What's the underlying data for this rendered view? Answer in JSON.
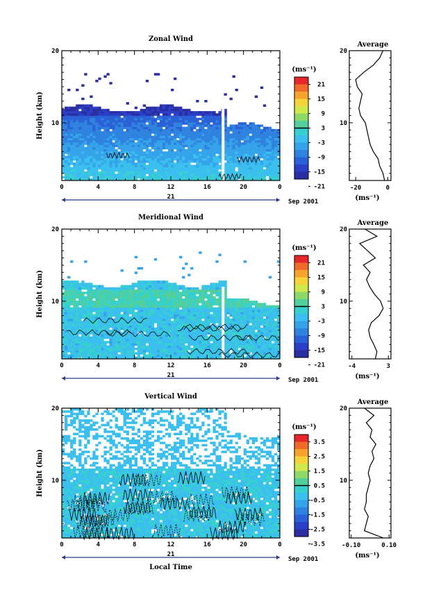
{
  "chart_data": [
    {
      "type": "heatmap",
      "title": "Zonal Wind",
      "ylabel": "Height (km)",
      "xlabel": "",
      "xticks": [
        "0",
        "4",
        "8",
        "12",
        "16",
        "20",
        "0"
      ],
      "yticks": [
        "10",
        "20"
      ],
      "day_label": "21",
      "date_label": "Sep 2001",
      "ylim": [
        2,
        20
      ],
      "xlim": [
        0,
        24
      ],
      "colorbar": {
        "unit": "(ms⁻¹)",
        "labels": [
          "21",
          "15",
          "9",
          "3",
          "-3",
          "-9",
          "-15",
          "-21"
        ],
        "colors": [
          "#e6262a",
          "#f06a2a",
          "#f6a32e",
          "#f4d43a",
          "#cfe84a",
          "#8ed86a",
          "#52cf9a",
          "#36d0cf",
          "#3bbfee",
          "#35a3ea",
          "#2f83df",
          "#2a61d6",
          "#2a3fc8",
          "#2b2ea0"
        ],
        "vmin": -24,
        "vmax": 24
      },
      "average": {
        "title": "Average",
        "xlabel": "(ms⁻¹)",
        "xticks": [
          "-20",
          "0"
        ],
        "xlim": [
          -24,
          2
        ],
        "heights": [
          2,
          3,
          4,
          5,
          6,
          7,
          8,
          9,
          10,
          11,
          12,
          13,
          14,
          15,
          16,
          17,
          18,
          19,
          20
        ],
        "values": [
          -2,
          -3,
          -5,
          -6,
          -9,
          -11,
          -12,
          -13,
          -14,
          -17,
          -18,
          -17,
          -16,
          -19,
          -20,
          -15,
          -9,
          -5,
          -3
        ]
      }
    },
    {
      "type": "heatmap",
      "title": "Meridional Wind",
      "ylabel": "Height (km)",
      "xlabel": "",
      "xticks": [
        "0",
        "4",
        "8",
        "12",
        "16",
        "20",
        "0"
      ],
      "yticks": [
        "10",
        "20"
      ],
      "day_label": "21",
      "date_label": "Sep 2001",
      "ylim": [
        2,
        20
      ],
      "xlim": [
        0,
        24
      ],
      "colorbar": {
        "unit": "(ms⁻¹)",
        "labels": [
          "21",
          "15",
          "9",
          "3",
          "-3",
          "-9",
          "-15",
          "-21"
        ],
        "colors": [
          "#e6262a",
          "#f06a2a",
          "#f6a32e",
          "#f4d43a",
          "#cfe84a",
          "#8ed86a",
          "#52cf9a",
          "#36d0cf",
          "#3bbfee",
          "#35a3ea",
          "#2f83df",
          "#2a61d6",
          "#2a3fc8",
          "#2b2ea0"
        ],
        "vmin": -24,
        "vmax": 24
      },
      "average": {
        "title": "Average",
        "xlabel": "(ms⁻¹)",
        "xticks": [
          "-4",
          "3"
        ],
        "xlim": [
          -4.5,
          3.5
        ],
        "heights": [
          2,
          3,
          4,
          5,
          6,
          7,
          8,
          9,
          10,
          11,
          12,
          13,
          14,
          15,
          16,
          17,
          18,
          19,
          20
        ],
        "values": [
          0.5,
          0.8,
          0.2,
          -0.5,
          -0.8,
          -0.3,
          1.2,
          2.0,
          1.5,
          0.3,
          -0.6,
          -1.2,
          -0.5,
          -1.8,
          0.5,
          -1.0,
          -2.5,
          0.8,
          -1.5
        ]
      }
    },
    {
      "type": "heatmap",
      "title": "Vertical Wind",
      "ylabel": "Height (km)",
      "xlabel": "Local Time",
      "xticks": [
        "0",
        "4",
        "8",
        "12",
        "16",
        "20",
        "0"
      ],
      "yticks": [
        "10",
        "20"
      ],
      "day_label": "21",
      "date_label": "Sep 2001",
      "ylim": [
        2,
        20
      ],
      "xlim": [
        0,
        24
      ],
      "colorbar": {
        "unit": "(ms⁻¹)",
        "labels": [
          "3.5",
          "2.5",
          "1.5",
          "0.5",
          "-0.5",
          "-1.5",
          "-2.5",
          "-3.5"
        ],
        "colors": [
          "#e6262a",
          "#f06a2a",
          "#f6a32e",
          "#f4d43a",
          "#cfe84a",
          "#8ed86a",
          "#52cf9a",
          "#36d0cf",
          "#3bbfee",
          "#35a3ea",
          "#2f83df",
          "#2a61d6",
          "#2a3fc8",
          "#2b2ea0"
        ],
        "vmin": -4,
        "vmax": 4
      },
      "average": {
        "title": "Average",
        "xlabel": "(ms⁻¹)",
        "xticks": [
          "-0.10",
          "0.10"
        ],
        "xlim": [
          -0.11,
          0.11
        ],
        "heights": [
          2,
          3,
          4,
          5,
          6,
          7,
          8,
          9,
          10,
          11,
          12,
          13,
          14,
          15,
          16,
          17,
          18,
          19,
          20
        ],
        "values": [
          0.07,
          -0.03,
          -0.02,
          -0.01,
          -0.03,
          -0.02,
          -0.02,
          -0.01,
          0.0,
          -0.01,
          0.0,
          0.02,
          0.01,
          0.03,
          0.0,
          0.01,
          -0.02,
          0.02,
          -0.03
        ]
      }
    }
  ]
}
